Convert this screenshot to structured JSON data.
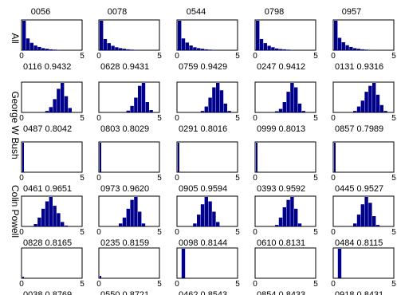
{
  "figure": {
    "column_titles": [
      "0056",
      "0078",
      "0544",
      "0798",
      "0957"
    ],
    "row_labels": [
      "All",
      "George W Bush",
      "",
      "Colin Powell",
      ""
    ]
  },
  "chart_data": {
    "type": "bar",
    "grid": false,
    "xlim": [
      0,
      5
    ],
    "xticks": [
      "0",
      "5"
    ],
    "bar_color": "#00008b",
    "panels": [
      {
        "row": 0,
        "col": 0,
        "caption": "0116 0.9432",
        "values": [
          1.0,
          0.4,
          0.25,
          0.16,
          0.11,
          0.07,
          0.05,
          0.03,
          0.02,
          0.01
        ]
      },
      {
        "row": 0,
        "col": 1,
        "caption": "0628 0.9431",
        "values": [
          1.0,
          0.38,
          0.24,
          0.15,
          0.1,
          0.07,
          0.05,
          0.03,
          0.02,
          0.01
        ]
      },
      {
        "row": 0,
        "col": 2,
        "caption": "0759 0.9429",
        "values": [
          1.0,
          0.4,
          0.26,
          0.16,
          0.1,
          0.07,
          0.05,
          0.03,
          0.02,
          0.01
        ]
      },
      {
        "row": 0,
        "col": 3,
        "caption": "0247 0.9412",
        "values": [
          1.0,
          0.38,
          0.24,
          0.15,
          0.1,
          0.06,
          0.04,
          0.03,
          0.02,
          0.01
        ]
      },
      {
        "row": 0,
        "col": 4,
        "caption": "0131 0.9316",
        "values": [
          1.0,
          0.42,
          0.27,
          0.17,
          0.11,
          0.07,
          0.05,
          0.03,
          0.02,
          0.01
        ]
      },
      {
        "row": 1,
        "col": 0,
        "caption": "0487 0.8042",
        "values": [
          0,
          0,
          0,
          0,
          0,
          0,
          0.05,
          0.18,
          0.45,
          0.8,
          1.0,
          0.55,
          0.15,
          0
        ]
      },
      {
        "row": 1,
        "col": 1,
        "caption": "0803 0.8029",
        "values": [
          0,
          0,
          0,
          0,
          0,
          0,
          0,
          0.06,
          0.22,
          0.5,
          0.9,
          1.0,
          0.35,
          0.08
        ]
      },
      {
        "row": 1,
        "col": 2,
        "caption": "0291 0.8016",
        "values": [
          0,
          0,
          0,
          0,
          0,
          0,
          0.05,
          0.2,
          0.5,
          0.85,
          1.0,
          0.75,
          0.3,
          0.05
        ]
      },
      {
        "row": 1,
        "col": 3,
        "caption": "0999 0.8013",
        "values": [
          0,
          0,
          0,
          0,
          0,
          0.04,
          0.12,
          0.35,
          0.7,
          1.0,
          0.85,
          0.3,
          0.05,
          0
        ]
      },
      {
        "row": 1,
        "col": 4,
        "caption": "0857 0.7989",
        "values": [
          0,
          0,
          0,
          0,
          0,
          0.05,
          0.2,
          0.4,
          0.7,
          0.9,
          1.0,
          0.6,
          0.25,
          0.05
        ]
      },
      {
        "row": 2,
        "col": 0,
        "caption": "0461 0.9651",
        "values": [
          1.0
        ]
      },
      {
        "row": 2,
        "col": 1,
        "caption": "0973 0.9620",
        "values": [
          1.0
        ]
      },
      {
        "row": 2,
        "col": 2,
        "caption": "0905 0.9594",
        "values": [
          1.0
        ]
      },
      {
        "row": 2,
        "col": 3,
        "caption": "0393 0.9592",
        "values": [
          1.0
        ]
      },
      {
        "row": 2,
        "col": 4,
        "caption": "0445 0.9527",
        "values": [
          1.0
        ]
      },
      {
        "row": 3,
        "col": 0,
        "caption": "0828 0.8165",
        "values": [
          0,
          0,
          0,
          0.08,
          0.3,
          0.6,
          0.85,
          1.0,
          0.7,
          0.45,
          0.15,
          0.03,
          0,
          0
        ]
      },
      {
        "row": 3,
        "col": 1,
        "caption": "0235 0.8159",
        "values": [
          0,
          0,
          0,
          0,
          0,
          0.1,
          0.3,
          0.6,
          0.9,
          1.0,
          0.5,
          0.1,
          0,
          0
        ]
      },
      {
        "row": 3,
        "col": 2,
        "caption": "0098 0.8144",
        "values": [
          0,
          0,
          0,
          0,
          0.1,
          0.4,
          0.75,
          1.0,
          0.85,
          0.5,
          0.15,
          0,
          0,
          0
        ]
      },
      {
        "row": 3,
        "col": 3,
        "caption": "0610 0.8131",
        "values": [
          0,
          0,
          0,
          0,
          0,
          0.05,
          0.3,
          0.65,
          0.9,
          1.0,
          0.6,
          0.1,
          0,
          0
        ]
      },
      {
        "row": 3,
        "col": 4,
        "caption": "0484 0.8115",
        "values": [
          0,
          0,
          0,
          0,
          0,
          0.1,
          0.4,
          0.75,
          1.0,
          0.8,
          0.35,
          0.05,
          0,
          0
        ]
      },
      {
        "row": 4,
        "col": 0,
        "caption": "0038 0.8769",
        "values": [
          0.05
        ]
      },
      {
        "row": 4,
        "col": 1,
        "caption": "0550 0.8721",
        "values": [
          0.08
        ]
      },
      {
        "row": 4,
        "col": 2,
        "caption": "0462 0.8543",
        "values": [
          0,
          1.0,
          0,
          0,
          0,
          0,
          0,
          0,
          0,
          0,
          0,
          0,
          0,
          0
        ]
      },
      {
        "row": 4,
        "col": 3,
        "caption": "0854 0.8433",
        "values": [
          0
        ]
      },
      {
        "row": 4,
        "col": 4,
        "caption": "0918 0.8431",
        "values": [
          0,
          1.0,
          0,
          0,
          0,
          0,
          0,
          0,
          0,
          0,
          0,
          0,
          0,
          0
        ]
      }
    ]
  }
}
